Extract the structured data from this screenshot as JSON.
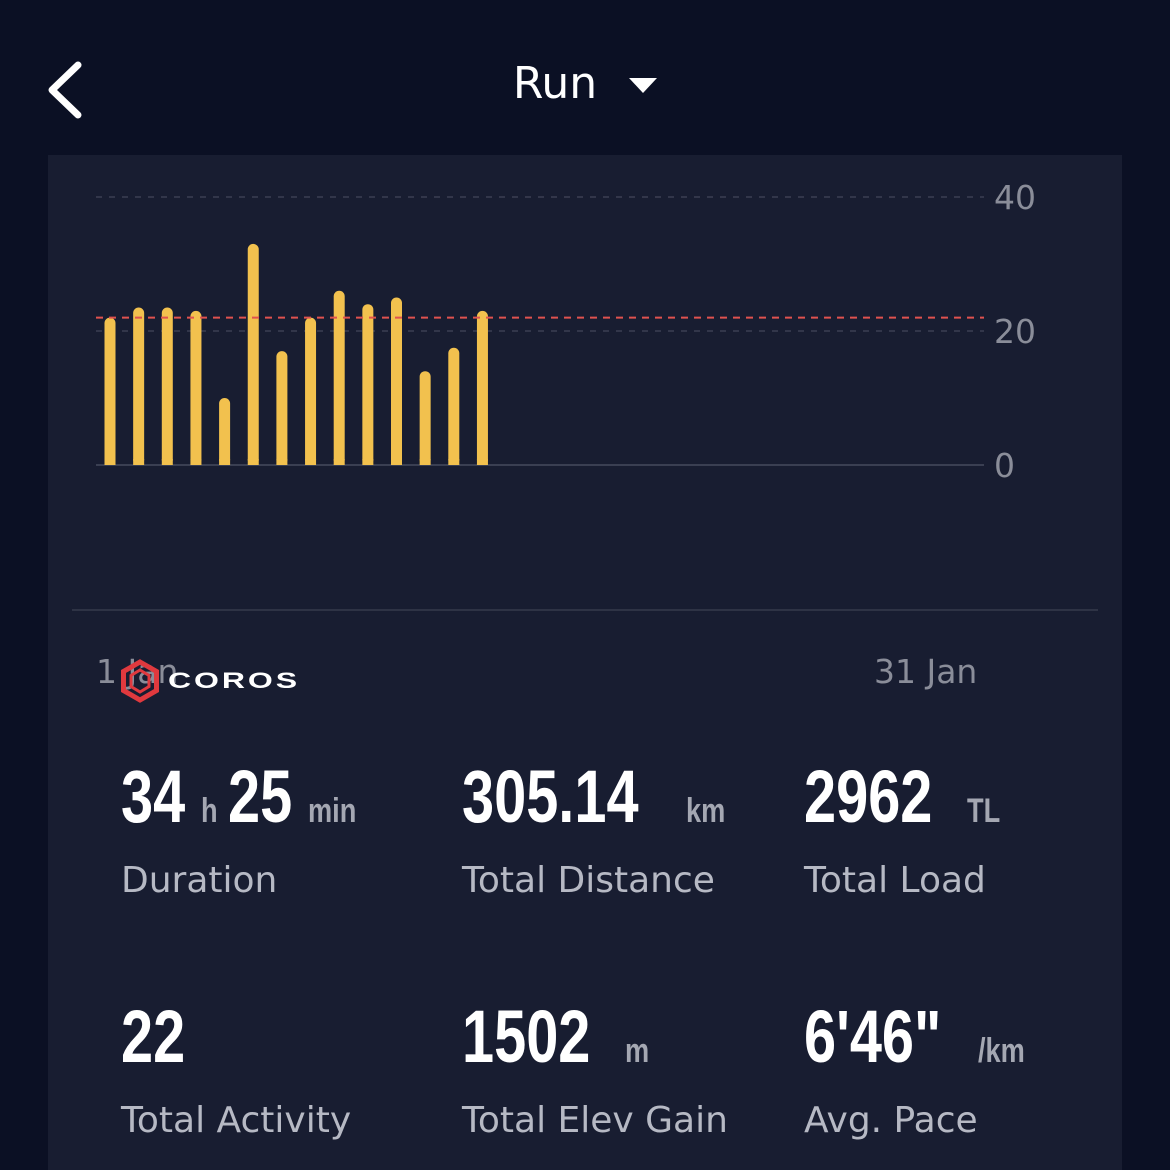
{
  "header": {
    "title": "Run"
  },
  "chart_data": {
    "type": "bar",
    "x_start_label": "1 Jan",
    "x_end_label": "31 Jan",
    "ylim": [
      0,
      40
    ],
    "yticks": [
      "40",
      "20",
      "0"
    ],
    "average_line": 22,
    "grid": true,
    "bar_color": "#f2c14e",
    "average_color": "#e0524f",
    "days": [
      1,
      2,
      3,
      4,
      5,
      6,
      7,
      8,
      9,
      10,
      11,
      12,
      13,
      14
    ],
    "values": [
      22,
      23.5,
      23.5,
      23,
      10,
      33,
      17,
      22,
      26,
      24,
      25,
      14,
      17.5,
      23
    ]
  },
  "brand": {
    "name": "COROS",
    "accent": "#e0393e"
  },
  "stats": [
    {
      "parts": [
        {
          "t": "num",
          "v": "34"
        },
        {
          "t": "unit",
          "v": "h"
        },
        {
          "t": "num",
          "v": "25"
        },
        {
          "t": "unit",
          "v": "min"
        }
      ],
      "label": "Duration"
    },
    {
      "parts": [
        {
          "t": "num",
          "v": "305.14"
        },
        {
          "t": "unit",
          "v": "km"
        }
      ],
      "label": "Total Distance"
    },
    {
      "parts": [
        {
          "t": "num",
          "v": "2962"
        },
        {
          "t": "unit",
          "v": "TL"
        }
      ],
      "label": "Total Load"
    },
    {
      "parts": [
        {
          "t": "num",
          "v": "22"
        }
      ],
      "label": "Total Activity"
    },
    {
      "parts": [
        {
          "t": "num",
          "v": "1502"
        },
        {
          "t": "unit",
          "v": "m"
        }
      ],
      "label": "Total Elev Gain"
    },
    {
      "parts": [
        {
          "t": "num",
          "v": "6'46\""
        },
        {
          "t": "unit",
          "v": "/km"
        }
      ],
      "label": "Avg. Pace"
    }
  ]
}
